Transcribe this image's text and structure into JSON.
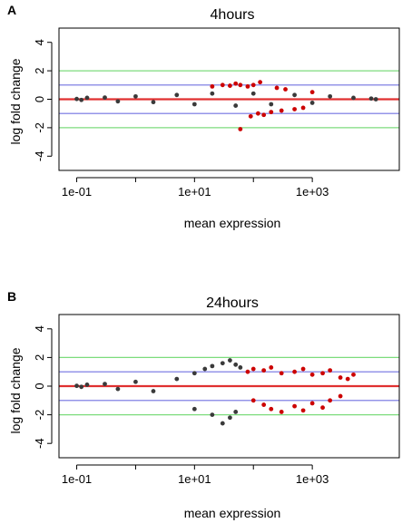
{
  "chart_data": [
    {
      "panel": "A",
      "type": "scatter",
      "title": "4hours",
      "xlabel": "mean expression",
      "ylabel": "log fold change",
      "xscale": "log",
      "xlim": [
        0.05,
        30000
      ],
      "ylim": [
        -5,
        5
      ],
      "x_tick_labels": [
        "1e-01",
        "1e+01",
        "1e+03"
      ],
      "x_ticks": [
        0.1,
        10,
        1000
      ],
      "y_ticks": [
        4,
        2,
        0,
        -2,
        -4
      ],
      "y_tick_labels": [
        "4",
        "2",
        "0",
        "-2",
        "-4"
      ],
      "reference_lines": [
        {
          "y": 2,
          "color": "#7ddc7d"
        },
        {
          "y": 1,
          "color": "#7070e0"
        },
        {
          "y": 0,
          "color": "#e03030"
        },
        {
          "y": -1,
          "color": "#7070e0"
        },
        {
          "y": -2,
          "color": "#7ddc7d"
        }
      ],
      "series": [
        {
          "color": "#3a3a3a",
          "x": [
            0.1,
            0.12,
            0.15,
            0.3,
            0.5,
            1,
            2,
            5,
            10,
            20,
            50,
            100,
            200,
            500,
            1000,
            2000,
            5000,
            10000,
            12000
          ],
          "y": [
            0.02,
            -0.05,
            0.1,
            0.12,
            -0.15,
            0.2,
            -0.2,
            0.3,
            -0.35,
            0.4,
            -0.45,
            0.4,
            -0.35,
            0.3,
            -0.25,
            0.2,
            0.1,
            0.05,
            0.0
          ]
        },
        {
          "color": "#cc0000",
          "x": [
            20,
            30,
            40,
            50,
            60,
            80,
            100,
            120,
            150,
            200,
            250,
            300,
            350,
            500,
            700,
            1000,
            60,
            90,
            130
          ],
          "y": [
            0.9,
            1.0,
            0.95,
            1.1,
            1.0,
            0.9,
            1.0,
            -1.0,
            -1.1,
            -0.9,
            0.8,
            -0.8,
            0.7,
            -0.7,
            -0.6,
            0.5,
            -2.1,
            -1.2,
            1.2
          ]
        }
      ]
    },
    {
      "panel": "B",
      "type": "scatter",
      "title": "24hours",
      "xlabel": "mean expression",
      "ylabel": "log fold change",
      "xscale": "log",
      "xlim": [
        0.05,
        30000
      ],
      "ylim": [
        -5,
        5
      ],
      "x_tick_labels": [
        "1e-01",
        "1e+01",
        "1e+03"
      ],
      "x_ticks": [
        0.1,
        10,
        1000
      ],
      "y_ticks": [
        4,
        2,
        0,
        -2,
        -4
      ],
      "y_tick_labels": [
        "4",
        "2",
        "0",
        "-2",
        "-4"
      ],
      "reference_lines": [
        {
          "y": 2,
          "color": "#7ddc7d"
        },
        {
          "y": 1,
          "color": "#7070e0"
        },
        {
          "y": 0,
          "color": "#e03030"
        },
        {
          "y": -1,
          "color": "#7070e0"
        },
        {
          "y": -2,
          "color": "#7ddc7d"
        }
      ],
      "series": [
        {
          "color": "#3a3a3a",
          "x": [
            0.1,
            0.12,
            0.15,
            0.3,
            0.5,
            1,
            2,
            5,
            10,
            15,
            20,
            30,
            40,
            50,
            60,
            10,
            20,
            30,
            40,
            50
          ],
          "y": [
            0.02,
            -0.05,
            0.1,
            0.15,
            -0.2,
            0.3,
            -0.35,
            0.5,
            0.9,
            1.2,
            1.4,
            1.6,
            1.8,
            1.5,
            1.3,
            -1.6,
            -2.0,
            -2.6,
            -2.2,
            -1.8
          ]
        },
        {
          "color": "#cc0000",
          "x": [
            80,
            100,
            150,
            200,
            300,
            500,
            700,
            1000,
            1500,
            2000,
            3000,
            4000,
            5000,
            100,
            150,
            200,
            300,
            500,
            700,
            1000,
            1500,
            2000,
            3000
          ],
          "y": [
            1.0,
            1.2,
            1.1,
            1.3,
            0.9,
            1.0,
            1.2,
            0.8,
            0.9,
            1.1,
            0.6,
            0.5,
            0.8,
            -1.0,
            -1.3,
            -1.6,
            -1.8,
            -1.4,
            -1.7,
            -1.2,
            -1.5,
            -1.0,
            -0.7
          ]
        }
      ]
    }
  ]
}
